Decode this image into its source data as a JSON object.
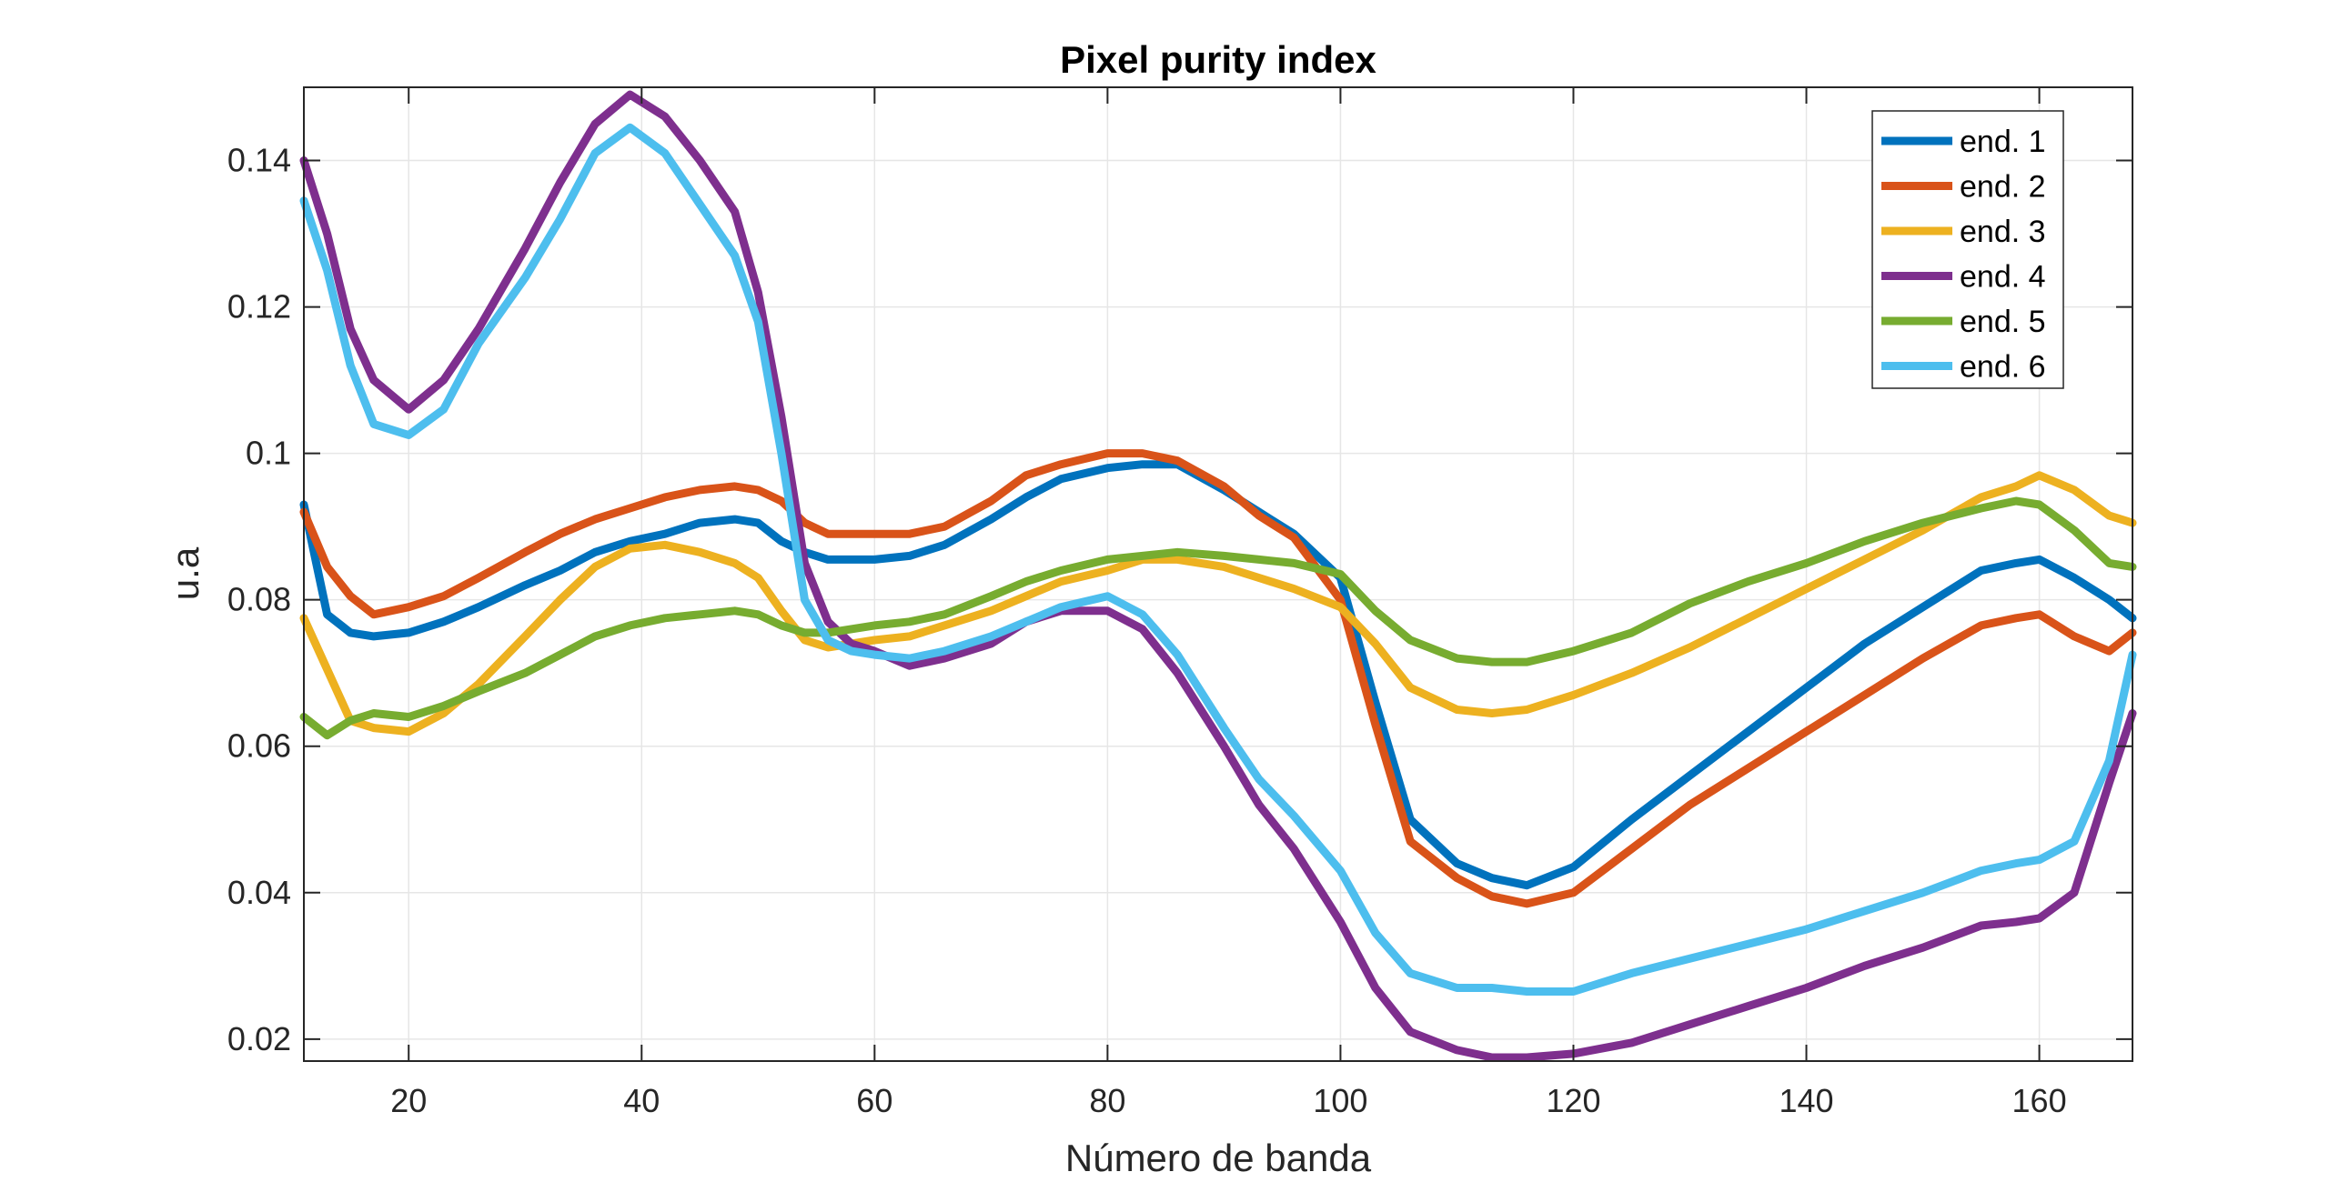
{
  "chart_data": {
    "type": "line",
    "title": "Pixel purity index",
    "xlabel": "Número de banda",
    "ylabel": "u.a",
    "xlim": [
      11,
      168
    ],
    "ylim": [
      0.017,
      0.15
    ],
    "xticks": [
      20,
      40,
      60,
      80,
      100,
      120,
      140,
      160
    ],
    "yticks": [
      0.02,
      0.04,
      0.06,
      0.08,
      0.1,
      0.12,
      0.14
    ],
    "ytick_labels": [
      "0.02",
      "0.04",
      "0.06",
      "0.08",
      "0.1",
      "0.12",
      "0.14"
    ],
    "grid": true,
    "legend_position": "top-right",
    "x": [
      11,
      13,
      15,
      17,
      20,
      23,
      26,
      30,
      33,
      36,
      39,
      42,
      45,
      48,
      50,
      52,
      54,
      56,
      58,
      60,
      63,
      66,
      70,
      73,
      76,
      80,
      83,
      86,
      90,
      93,
      96,
      100,
      103,
      106,
      110,
      113,
      116,
      120,
      125,
      130,
      135,
      140,
      145,
      150,
      155,
      158,
      160,
      163,
      166,
      168
    ],
    "series": [
      {
        "name": "end. 1",
        "color": "#0072BD",
        "values": [
          0.093,
          0.078,
          0.0755,
          0.075,
          0.0755,
          0.077,
          0.079,
          0.082,
          0.084,
          0.0865,
          0.088,
          0.089,
          0.0905,
          0.091,
          0.0905,
          0.088,
          0.0865,
          0.0855,
          0.0855,
          0.0855,
          0.086,
          0.0875,
          0.091,
          0.094,
          0.0965,
          0.098,
          0.0985,
          0.0985,
          0.095,
          0.092,
          0.089,
          0.083,
          0.066,
          0.05,
          0.044,
          0.042,
          0.041,
          0.0435,
          0.05,
          0.056,
          0.062,
          0.068,
          0.074,
          0.079,
          0.084,
          0.085,
          0.0855,
          0.083,
          0.08,
          0.0775
        ]
      },
      {
        "name": "end. 2",
        "color": "#D95319",
        "values": [
          0.092,
          0.0845,
          0.0805,
          0.078,
          0.079,
          0.0805,
          0.083,
          0.0865,
          0.089,
          0.091,
          0.0925,
          0.094,
          0.095,
          0.0955,
          0.095,
          0.0935,
          0.0905,
          0.089,
          0.089,
          0.089,
          0.089,
          0.09,
          0.0935,
          0.097,
          0.0985,
          0.1,
          0.1,
          0.099,
          0.0955,
          0.0915,
          0.0885,
          0.08,
          0.063,
          0.047,
          0.042,
          0.0395,
          0.0385,
          0.04,
          0.046,
          0.052,
          0.057,
          0.062,
          0.067,
          0.072,
          0.0765,
          0.0775,
          0.078,
          0.075,
          0.073,
          0.0755
        ]
      },
      {
        "name": "end. 3",
        "color": "#EDB120",
        "values": [
          0.0775,
          0.0705,
          0.0635,
          0.0625,
          0.062,
          0.0645,
          0.0685,
          0.075,
          0.08,
          0.0845,
          0.087,
          0.0875,
          0.0865,
          0.085,
          0.083,
          0.0785,
          0.0745,
          0.0735,
          0.074,
          0.0745,
          0.075,
          0.0765,
          0.0785,
          0.0805,
          0.0825,
          0.084,
          0.0855,
          0.0855,
          0.0845,
          0.083,
          0.0815,
          0.079,
          0.074,
          0.068,
          0.065,
          0.0645,
          0.065,
          0.067,
          0.07,
          0.0735,
          0.0775,
          0.0815,
          0.0855,
          0.0895,
          0.094,
          0.0955,
          0.097,
          0.095,
          0.0915,
          0.0905
        ]
      },
      {
        "name": "end. 4",
        "color": "#7E2F8E",
        "values": [
          0.14,
          0.13,
          0.117,
          0.11,
          0.106,
          0.11,
          0.117,
          0.128,
          0.137,
          0.145,
          0.149,
          0.146,
          0.14,
          0.133,
          0.122,
          0.105,
          0.085,
          0.077,
          0.074,
          0.073,
          0.071,
          0.072,
          0.074,
          0.077,
          0.0785,
          0.0785,
          0.076,
          0.07,
          0.06,
          0.052,
          0.046,
          0.036,
          0.027,
          0.021,
          0.0185,
          0.0175,
          0.0175,
          0.018,
          0.0195,
          0.022,
          0.0245,
          0.027,
          0.03,
          0.0325,
          0.0355,
          0.036,
          0.0365,
          0.04,
          0.055,
          0.0645
        ]
      },
      {
        "name": "end. 5",
        "color": "#77AC30",
        "values": [
          0.064,
          0.0615,
          0.0635,
          0.0645,
          0.064,
          0.0655,
          0.0675,
          0.07,
          0.0725,
          0.075,
          0.0765,
          0.0775,
          0.078,
          0.0785,
          0.078,
          0.0765,
          0.0755,
          0.0755,
          0.076,
          0.0765,
          0.077,
          0.078,
          0.0805,
          0.0825,
          0.084,
          0.0855,
          0.086,
          0.0865,
          0.086,
          0.0855,
          0.085,
          0.0835,
          0.0785,
          0.0745,
          0.072,
          0.0715,
          0.0715,
          0.073,
          0.0755,
          0.0795,
          0.0825,
          0.085,
          0.088,
          0.0905,
          0.0925,
          0.0935,
          0.093,
          0.0895,
          0.085,
          0.0845
        ]
      },
      {
        "name": "end. 6",
        "color": "#4DBEEE",
        "values": [
          0.1345,
          0.125,
          0.112,
          0.104,
          0.1025,
          0.106,
          0.115,
          0.124,
          0.132,
          0.141,
          0.1445,
          0.141,
          0.134,
          0.127,
          0.118,
          0.1,
          0.08,
          0.0745,
          0.073,
          0.0725,
          0.072,
          0.073,
          0.075,
          0.077,
          0.079,
          0.0805,
          0.078,
          0.0725,
          0.0625,
          0.0555,
          0.0505,
          0.043,
          0.0345,
          0.029,
          0.027,
          0.027,
          0.0265,
          0.0265,
          0.029,
          0.031,
          0.033,
          0.035,
          0.0375,
          0.04,
          0.043,
          0.044,
          0.0445,
          0.047,
          0.058,
          0.0725
        ]
      }
    ]
  }
}
